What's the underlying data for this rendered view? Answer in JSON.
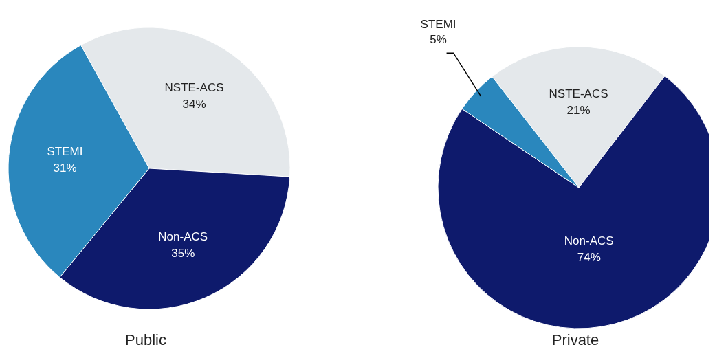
{
  "chart_data": [
    {
      "type": "pie",
      "title": "Public",
      "categories": [
        "NSTE-ACS",
        "Non-ACS",
        "STEMI"
      ],
      "values": [
        34,
        35,
        31
      ],
      "colors": [
        "#e4e8eb",
        "#0e1a6c",
        "#2a87bd"
      ],
      "value_labels": [
        "34%",
        "35%",
        "31%"
      ]
    },
    {
      "type": "pie",
      "title": "Private",
      "categories": [
        "NSTE-ACS",
        "Non-ACS",
        "STEMI"
      ],
      "values": [
        21,
        74,
        5
      ],
      "colors": [
        "#e4e8eb",
        "#0e1a6c",
        "#2a87bd"
      ],
      "value_labels": [
        "21%",
        "74%",
        "5%"
      ]
    }
  ]
}
